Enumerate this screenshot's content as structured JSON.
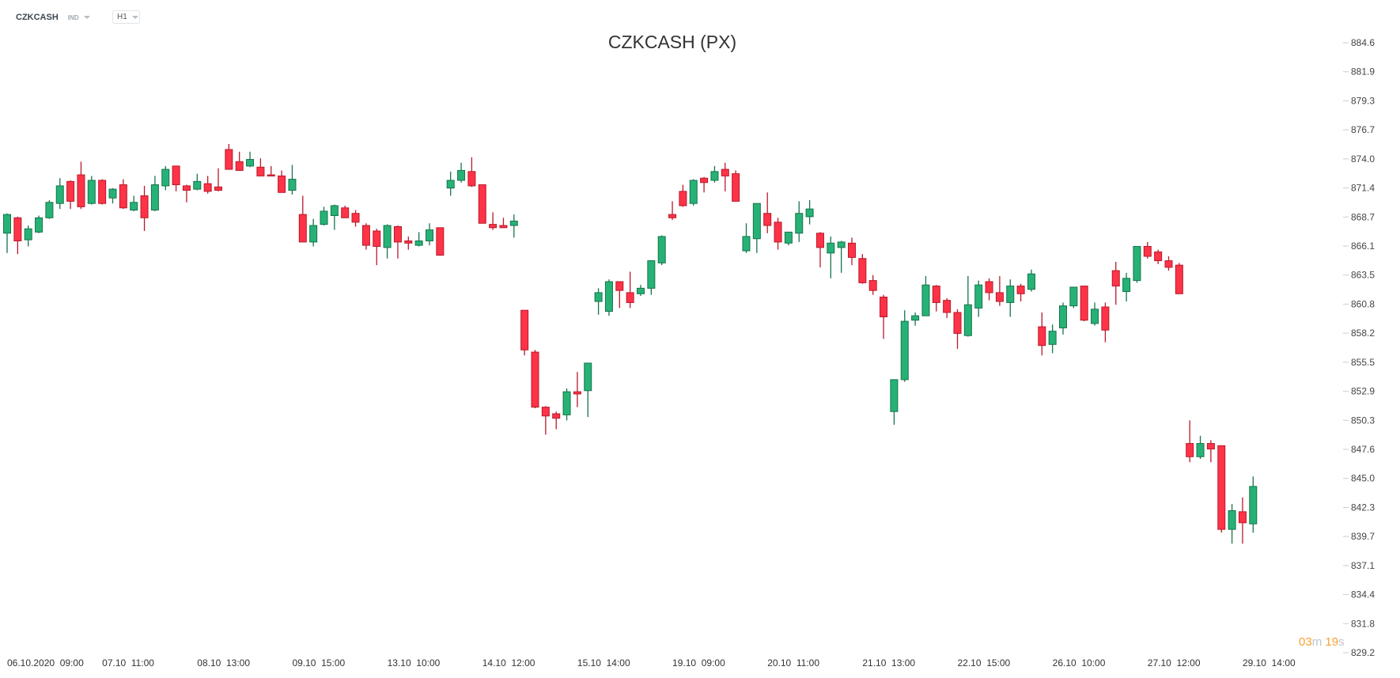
{
  "header": {
    "symbol": "CZKCASH",
    "type": "IND",
    "timeframe": "H1"
  },
  "countdown": {
    "minutes": "03",
    "m": "m",
    "seconds": "19",
    "s": "s"
  },
  "colors": {
    "up": "#26b276",
    "up_border": "#17744c",
    "down": "#ff3347",
    "down_border": "#b8192b"
  },
  "chart_data": {
    "type": "candlestick",
    "title": "CZKCASH (PX)",
    "ylim": [
      829.2,
      884.6
    ],
    "y_ticks": [
      "884.6",
      "881.9",
      "879.3",
      "876.7",
      "874.0",
      "871.4",
      "868.7",
      "866.1",
      "863.5",
      "860.8",
      "858.2",
      "855.5",
      "852.9",
      "850.3",
      "847.6",
      "845.0",
      "842.3",
      "839.7",
      "837.1",
      "834.4",
      "831.8",
      "829.2"
    ],
    "x_labels": [
      {
        "index": 0,
        "label": "06.10.2020  09:00"
      },
      {
        "index": 9,
        "label": "07.10  11:00"
      },
      {
        "index": 18,
        "label": "08.10  13:00"
      },
      {
        "index": 27,
        "label": "09.10  15:00"
      },
      {
        "index": 36,
        "label": "13.10  10:00"
      },
      {
        "index": 45,
        "label": "14.10  12:00"
      },
      {
        "index": 54,
        "label": "15.10  14:00"
      },
      {
        "index": 63,
        "label": "19.10  09:00"
      },
      {
        "index": 72,
        "label": "20.10  11:00"
      },
      {
        "index": 81,
        "label": "21.10  13:00"
      },
      {
        "index": 90,
        "label": "22.10  15:00"
      },
      {
        "index": 99,
        "label": "26.10  10:00"
      },
      {
        "index": 108,
        "label": "27.10  12:00"
      },
      {
        "index": 117,
        "label": "29.10  14:00"
      }
    ],
    "ohlc_columns": [
      "open",
      "high",
      "low",
      "close"
    ],
    "candles": [
      [
        867.3,
        869.1,
        865.5,
        869.0
      ],
      [
        868.7,
        868.8,
        865.4,
        866.6
      ],
      [
        866.7,
        868.0,
        866.1,
        867.7
      ],
      [
        867.4,
        868.9,
        867.3,
        868.7
      ],
      [
        868.7,
        870.3,
        868.6,
        870.1
      ],
      [
        870.0,
        872.3,
        869.5,
        871.6
      ],
      [
        872.0,
        872.1,
        869.5,
        870.2
      ],
      [
        872.6,
        873.8,
        869.5,
        869.7
      ],
      [
        870.0,
        872.5,
        869.9,
        872.1
      ],
      [
        872.1,
        872.2,
        869.9,
        870.0
      ],
      [
        870.5,
        871.4,
        870.0,
        871.3
      ],
      [
        871.7,
        872.2,
        869.5,
        869.6
      ],
      [
        869.4,
        870.7,
        869.3,
        870.1
      ],
      [
        870.7,
        871.6,
        867.5,
        868.7
      ],
      [
        869.4,
        872.5,
        869.3,
        871.7
      ],
      [
        871.6,
        873.4,
        871.2,
        873.1
      ],
      [
        873.4,
        873.4,
        871.1,
        871.7
      ],
      [
        871.6,
        871.7,
        870.1,
        871.2
      ],
      [
        871.3,
        872.7,
        871.2,
        872.0
      ],
      [
        871.8,
        872.5,
        870.9,
        871.1
      ],
      [
        871.5,
        873.2,
        871.1,
        871.2
      ],
      [
        874.9,
        875.4,
        873.1,
        873.1
      ],
      [
        873.8,
        874.7,
        873.0,
        873.0
      ],
      [
        873.4,
        874.7,
        873.3,
        874.0
      ],
      [
        873.3,
        874.1,
        872.5,
        872.5
      ],
      [
        872.6,
        873.4,
        872.5,
        872.5
      ],
      [
        872.5,
        873.0,
        871.0,
        871.0
      ],
      [
        871.2,
        873.5,
        870.8,
        872.2
      ],
      [
        869.0,
        870.7,
        866.5,
        866.5
      ],
      [
        866.5,
        868.6,
        866.1,
        868.0
      ],
      [
        868.1,
        869.7,
        868.0,
        869.3
      ],
      [
        868.9,
        869.9,
        867.6,
        869.8
      ],
      [
        869.6,
        869.8,
        868.7,
        868.7
      ],
      [
        869.1,
        869.4,
        867.9,
        868.3
      ],
      [
        868.0,
        868.2,
        865.8,
        866.2
      ],
      [
        867.5,
        867.7,
        864.4,
        866.1
      ],
      [
        866.0,
        868.1,
        865.0,
        868.0
      ],
      [
        867.9,
        868.0,
        865.0,
        866.5
      ],
      [
        866.6,
        867.0,
        865.8,
        866.4
      ],
      [
        866.2,
        867.4,
        866.1,
        866.6
      ],
      [
        866.6,
        868.2,
        866.2,
        867.6
      ],
      [
        867.8,
        867.8,
        865.3,
        865.3
      ],
      [
        871.4,
        872.9,
        870.7,
        872.1
      ],
      [
        872.1,
        873.7,
        871.9,
        873.0
      ],
      [
        872.9,
        874.2,
        871.5,
        871.6
      ],
      [
        871.7,
        871.7,
        868.2,
        868.2
      ],
      [
        868.1,
        869.2,
        867.6,
        867.8
      ],
      [
        868.0,
        868.7,
        867.8,
        867.8
      ],
      [
        868.0,
        869.0,
        866.9,
        868.4
      ],
      [
        860.3,
        860.3,
        856.2,
        856.7
      ],
      [
        856.5,
        856.7,
        851.4,
        851.5
      ],
      [
        851.5,
        851.6,
        849.0,
        850.7
      ],
      [
        850.9,
        851.1,
        849.5,
        850.5
      ],
      [
        850.8,
        853.2,
        850.3,
        852.9
      ],
      [
        852.9,
        854.7,
        851.5,
        852.7
      ],
      [
        853.0,
        855.5,
        850.6,
        855.5
      ],
      [
        861.1,
        862.3,
        859.9,
        861.9
      ],
      [
        860.2,
        863.1,
        859.8,
        862.9
      ],
      [
        862.9,
        862.9,
        860.5,
        862.1
      ],
      [
        861.9,
        863.8,
        860.5,
        861.0
      ],
      [
        861.8,
        862.6,
        861.6,
        862.3
      ],
      [
        862.3,
        864.8,
        861.7,
        864.8
      ],
      [
        864.6,
        867.1,
        864.4,
        867.0
      ],
      [
        869.0,
        870.2,
        868.5,
        868.7
      ],
      [
        871.1,
        871.7,
        869.7,
        869.8
      ],
      [
        870.0,
        872.2,
        869.8,
        872.1
      ],
      [
        872.3,
        872.4,
        871.0,
        871.9
      ],
      [
        872.1,
        873.4,
        871.9,
        872.9
      ],
      [
        873.1,
        873.7,
        871.1,
        872.5
      ],
      [
        872.7,
        873.0,
        870.2,
        870.2
      ],
      [
        865.7,
        868.2,
        865.5,
        867.0
      ],
      [
        866.8,
        870.0,
        865.5,
        870.0
      ],
      [
        869.1,
        871.0,
        867.3,
        868.0
      ],
      [
        868.3,
        868.7,
        865.8,
        866.5
      ],
      [
        866.4,
        867.4,
        866.2,
        867.4
      ],
      [
        867.3,
        870.2,
        866.5,
        869.1
      ],
      [
        868.8,
        870.3,
        868.1,
        869.5
      ],
      [
        867.3,
        867.4,
        864.2,
        866.0
      ],
      [
        865.5,
        867.0,
        863.2,
        866.4
      ],
      [
        866.0,
        866.6,
        863.7,
        866.5
      ],
      [
        866.4,
        866.9,
        864.4,
        865.1
      ],
      [
        865.0,
        865.4,
        862.7,
        862.8
      ],
      [
        863.0,
        863.5,
        861.7,
        862.1
      ],
      [
        861.5,
        861.7,
        857.7,
        859.7
      ],
      [
        851.1,
        854.0,
        849.9,
        854.0
      ],
      [
        854.0,
        860.3,
        853.8,
        859.3
      ],
      [
        859.4,
        860.1,
        858.9,
        859.8
      ],
      [
        859.8,
        863.4,
        859.8,
        862.6
      ],
      [
        862.5,
        862.6,
        860.2,
        861.0
      ],
      [
        861.2,
        861.4,
        859.6,
        860.1
      ],
      [
        860.1,
        860.4,
        856.8,
        858.2
      ],
      [
        858.0,
        863.4,
        857.9,
        860.8
      ],
      [
        860.5,
        863.0,
        859.7,
        862.6
      ],
      [
        862.9,
        863.2,
        861.2,
        861.9
      ],
      [
        861.9,
        863.4,
        860.7,
        861.1
      ],
      [
        861.0,
        863.1,
        859.7,
        862.5
      ],
      [
        862.5,
        862.7,
        861.1,
        861.8
      ],
      [
        862.2,
        864.0,
        862.0,
        863.6
      ],
      [
        858.8,
        860.1,
        856.2,
        857.1
      ],
      [
        857.2,
        859.0,
        856.4,
        858.4
      ],
      [
        858.7,
        861.0,
        858.1,
        860.7
      ],
      [
        860.7,
        862.4,
        860.5,
        862.4
      ],
      [
        862.5,
        862.5,
        859.3,
        859.4
      ],
      [
        859.1,
        861.0,
        858.9,
        860.4
      ],
      [
        860.6,
        861.0,
        857.4,
        858.5
      ],
      [
        863.9,
        864.7,
        860.8,
        862.5
      ],
      [
        862.0,
        863.7,
        861.1,
        863.2
      ],
      [
        863.0,
        866.1,
        862.8,
        866.1
      ],
      [
        866.1,
        866.5,
        865.0,
        865.2
      ],
      [
        865.6,
        865.8,
        864.5,
        864.8
      ],
      [
        864.8,
        865.2,
        863.9,
        864.2
      ],
      [
        864.4,
        864.6,
        861.8,
        861.8
      ],
      [
        848.2,
        850.3,
        846.5,
        847.0
      ],
      [
        847.0,
        848.9,
        846.8,
        848.2
      ],
      [
        848.2,
        848.5,
        846.5,
        847.7
      ],
      [
        848.0,
        848.0,
        840.1,
        840.4
      ],
      [
        840.4,
        842.7,
        839.1,
        842.1
      ],
      [
        842.0,
        843.3,
        839.1,
        841.0
      ],
      [
        840.9,
        845.2,
        840.1,
        844.3
      ]
    ]
  }
}
